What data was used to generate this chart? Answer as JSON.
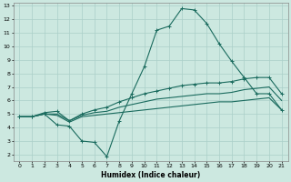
{
  "xlabel": "Humidex (Indice chaleur)",
  "xlim": [
    -0.5,
    21.5
  ],
  "ylim": [
    1.5,
    13.2
  ],
  "xticks": [
    0,
    1,
    2,
    3,
    4,
    5,
    6,
    7,
    8,
    9,
    10,
    11,
    12,
    13,
    14,
    15,
    16,
    17,
    18,
    19,
    20,
    21
  ],
  "yticks": [
    2,
    3,
    4,
    5,
    6,
    7,
    8,
    9,
    10,
    11,
    12,
    13
  ],
  "bg_color": "#cce8e0",
  "grid_color": "#aacfc8",
  "line_color": "#1a6b5e",
  "x": [
    0,
    1,
    2,
    3,
    4,
    5,
    6,
    7,
    8,
    9,
    10,
    11,
    12,
    13,
    14,
    15,
    16,
    17,
    18,
    19,
    20,
    21
  ],
  "line_zigzag": [
    4.8,
    4.8,
    5.0,
    4.2,
    4.1,
    3.0,
    2.9,
    1.85,
    4.5,
    6.5,
    8.5,
    11.2,
    11.5,
    12.8,
    12.7,
    11.7,
    10.2,
    8.9,
    7.7,
    6.5,
    6.5,
    5.3
  ],
  "line_top": [
    4.8,
    4.8,
    5.1,
    5.2,
    4.5,
    5.0,
    5.3,
    5.5,
    5.9,
    6.2,
    6.5,
    6.7,
    6.9,
    7.1,
    7.2,
    7.3,
    7.3,
    7.4,
    7.6,
    7.7,
    7.7,
    6.5
  ],
  "line_mid": [
    4.8,
    4.8,
    5.0,
    5.0,
    4.5,
    4.9,
    5.1,
    5.2,
    5.5,
    5.7,
    5.9,
    6.1,
    6.2,
    6.3,
    6.4,
    6.5,
    6.5,
    6.6,
    6.8,
    6.9,
    7.0,
    6.0
  ],
  "line_bot": [
    4.8,
    4.8,
    5.0,
    4.9,
    4.4,
    4.8,
    4.9,
    5.0,
    5.1,
    5.2,
    5.3,
    5.4,
    5.5,
    5.6,
    5.7,
    5.8,
    5.9,
    5.9,
    6.0,
    6.1,
    6.2,
    5.3
  ]
}
